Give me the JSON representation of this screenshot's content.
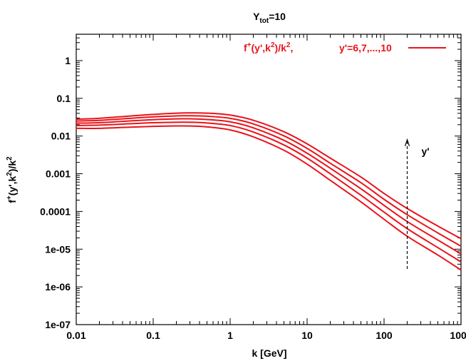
{
  "chart_data": {
    "type": "line",
    "title": {
      "base": "Y",
      "sub": "tot",
      "rest": "=10"
    },
    "xlabel": "k [GeV]",
    "ylabel": {
      "p1": "f",
      "p1sup": "+",
      "p2": "(y',k",
      "p2sup": "2",
      "p3": ")/k",
      "p3sup": "2"
    },
    "x_scale": "log",
    "y_scale": "log",
    "xlim": [
      0.01,
      1000
    ],
    "ylim": [
      1e-07,
      5
    ],
    "x_ticks": [
      {
        "value": 0.01,
        "label": "0.01"
      },
      {
        "value": 0.1,
        "label": "0.1"
      },
      {
        "value": 1,
        "label": "1"
      },
      {
        "value": 10,
        "label": "10"
      },
      {
        "value": 100,
        "label": "100"
      },
      {
        "value": 1000,
        "label": "1000"
      }
    ],
    "y_ticks": [
      {
        "value": 1,
        "label": "1"
      },
      {
        "value": 0.1,
        "label": "0.1"
      },
      {
        "value": 0.01,
        "label": "0.01"
      },
      {
        "value": 0.001,
        "label": "0.001"
      },
      {
        "value": 0.0001,
        "label": "0.0001"
      },
      {
        "value": 1e-05,
        "label": "1e-05"
      },
      {
        "value": 1e-06,
        "label": "1e-06"
      },
      {
        "value": 1e-07,
        "label": "1e-07"
      }
    ],
    "grid": false,
    "legend": {
      "position": "top-right",
      "label": {
        "p1": "f",
        "p1sup": "+",
        "p2": "(y',k",
        "p2sup": "2",
        "p3": ")/k",
        "p3sup": "2",
        "p4": ",",
        "values": "y'=6,7,...,10"
      }
    },
    "series_color": "#e8141b",
    "annotation": {
      "label": "y'",
      "arrow_x": 200,
      "arrow_from": 3e-06,
      "arrow_to": 0.008
    },
    "x": [
      0.01,
      0.02,
      0.05,
      0.1,
      0.2,
      0.3,
      0.5,
      1,
      2,
      5,
      10,
      20,
      50,
      100,
      200,
      500,
      1000
    ],
    "series": [
      {
        "values": [
          0.016,
          0.016,
          0.0172,
          0.018,
          0.0185,
          0.0184,
          0.0175,
          0.0145,
          0.0095,
          0.0042,
          0.0018,
          0.00067,
          0.00018,
          6.2e-05,
          2.2e-05,
          7e-06,
          2.8e-06
        ]
      },
      {
        "values": [
          0.019,
          0.0195,
          0.0212,
          0.0225,
          0.0232,
          0.0232,
          0.0222,
          0.019,
          0.0128,
          0.0058,
          0.0026,
          0.001,
          0.00027,
          9.6e-05,
          3.5e-05,
          1.1e-05,
          4.6e-06
        ]
      },
      {
        "values": [
          0.022,
          0.0225,
          0.0252,
          0.0272,
          0.0285,
          0.0286,
          0.0275,
          0.0238,
          0.0165,
          0.0077,
          0.0035,
          0.0014,
          0.0004,
          0.000145,
          5.4e-05,
          1.75e-05,
          7.5e-06
        ]
      },
      {
        "values": [
          0.025,
          0.026,
          0.0295,
          0.0322,
          0.0342,
          0.0345,
          0.0335,
          0.0295,
          0.021,
          0.0101,
          0.0047,
          0.0019,
          0.00058,
          0.00021,
          8.2e-05,
          2.7e-05,
          1.2e-05
        ]
      },
      {
        "values": [
          0.028,
          0.0295,
          0.034,
          0.0375,
          0.0405,
          0.041,
          0.0405,
          0.036,
          0.0262,
          0.013,
          0.0062,
          0.0026,
          0.00082,
          0.0003,
          0.00012,
          4.1e-05,
          1.9e-05
        ]
      }
    ]
  }
}
